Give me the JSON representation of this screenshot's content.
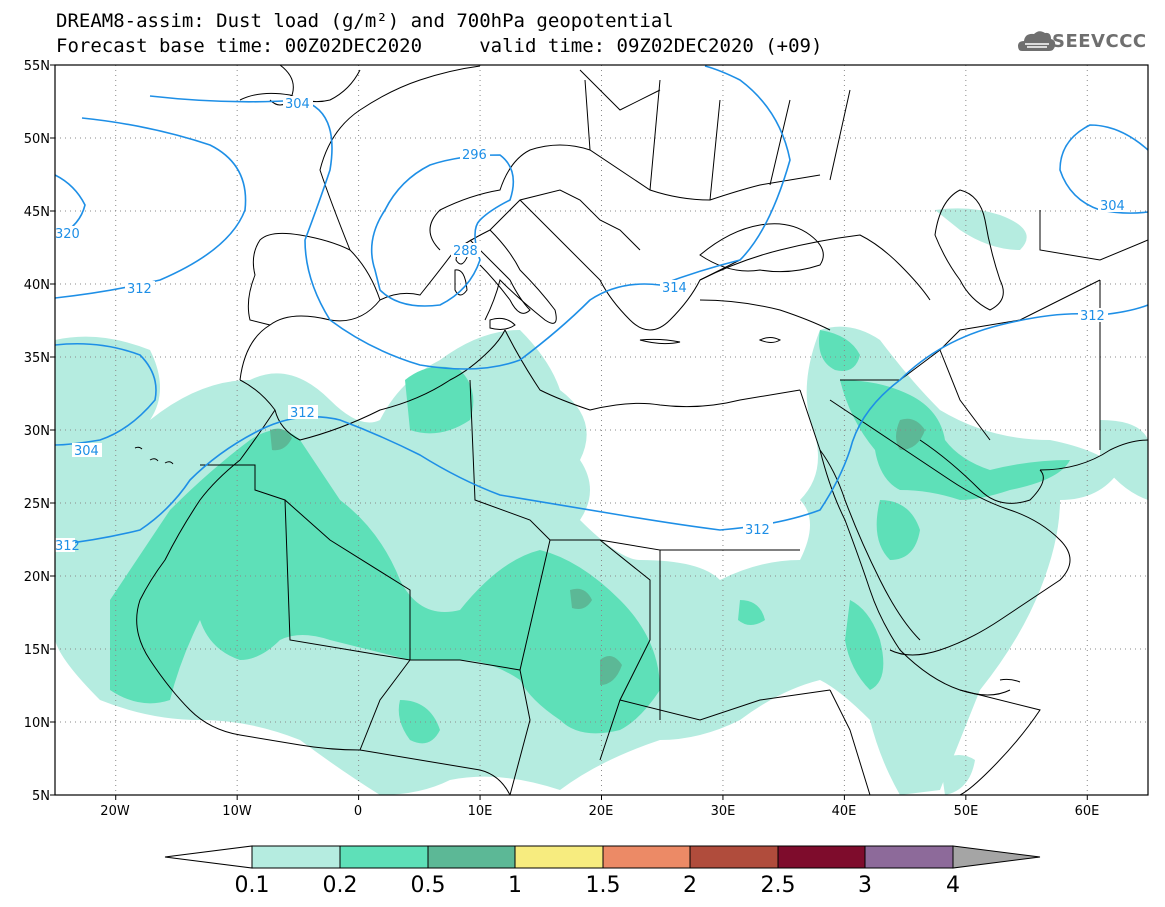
{
  "header": {
    "title_line1": "DREAM8-assim: Dust load (g/m²) and 700hPa geopotential",
    "title_line2": "Forecast base time: 00Z02DEC2020     valid time: 09Z02DEC2020 (+09)",
    "logo_text": "SEEVCCC",
    "logo_icon": "cloud-logo-icon"
  },
  "map": {
    "lon_range": [
      -25,
      65
    ],
    "lat_range": [
      5,
      55
    ],
    "lat_labels": [
      "55N",
      "50N",
      "45N",
      "40N",
      "35N",
      "30N",
      "25N",
      "20N",
      "15N",
      "10N",
      "5N"
    ],
    "lon_labels": [
      "20W",
      "10W",
      "0",
      "10E",
      "20E",
      "30E",
      "40E",
      "50E",
      "60E"
    ],
    "grid": "dotted",
    "colors": {
      "coast": "#000000",
      "contour": "#1e8fe6",
      "dust_01": "#b5ece0",
      "dust_02": "#5ee0b8",
      "dust_05": "#5cb896"
    },
    "contour_labels": [
      "304",
      "296",
      "288",
      "312",
      "314",
      "312",
      "304",
      "312",
      "312",
      "320",
      "304",
      "312"
    ]
  },
  "colorbar": {
    "labels": [
      "0.1",
      "0.2",
      "0.5",
      "1",
      "1.5",
      "2",
      "2.5",
      "3",
      "4"
    ],
    "colors": [
      "#ffffff",
      "#b5ece0",
      "#5ee0b8",
      "#5cb896",
      "#f7ec7f",
      "#ec8a66",
      "#b04c3c",
      "#7e0c2c",
      "#8d6a9a",
      "#a5a5a5"
    ]
  }
}
